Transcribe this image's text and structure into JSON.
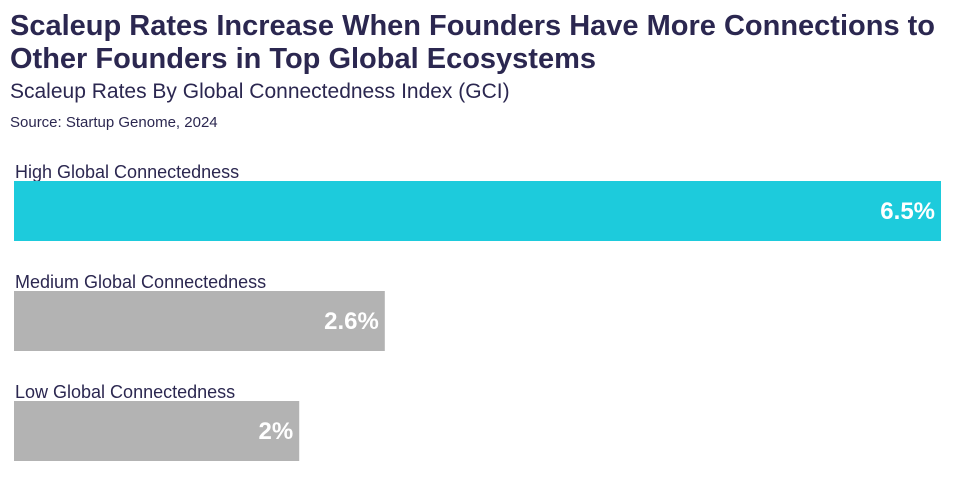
{
  "chart_data": {
    "type": "bar",
    "orientation": "horizontal",
    "title": "Scaleup Rates Increase When Founders Have More Connections to Other Founders in Top Global Ecosystems",
    "subtitle": "Scaleup Rates By Global Connectedness Index (GCI)",
    "source": "Source: Startup Genome, 2024",
    "categories": [
      "High Global Connectedness",
      "Medium Global Connectedness",
      "Low Global Connectedness"
    ],
    "values": [
      6.5,
      2.6,
      2.0
    ],
    "value_labels": [
      "6.5%",
      "2.6%",
      "2%"
    ],
    "colors": [
      "#1dcbdc",
      "#b3b3b3",
      "#b3b3b3"
    ],
    "xlim": [
      0,
      6.5
    ],
    "grid": false,
    "legend": "none",
    "xlabel": "",
    "ylabel": ""
  }
}
